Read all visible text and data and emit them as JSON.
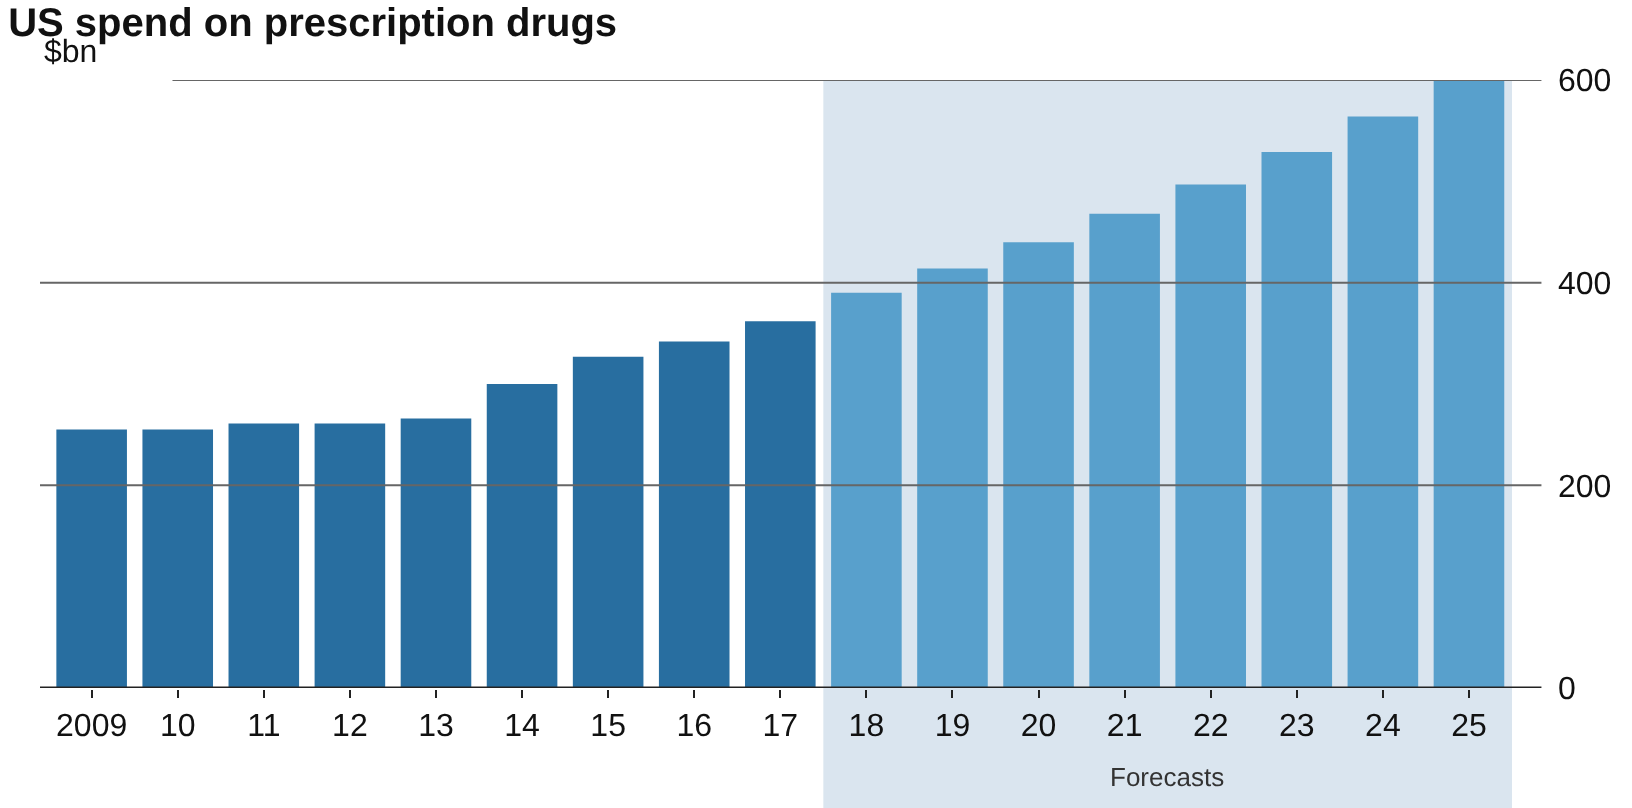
{
  "chart_data": {
    "type": "bar",
    "title": "US spend on prescription drugs",
    "ylabel": "$bn",
    "categories": [
      "2009",
      "10",
      "11",
      "12",
      "13",
      "14",
      "15",
      "16",
      "17",
      "18",
      "19",
      "20",
      "21",
      "22",
      "23",
      "24",
      "25"
    ],
    "values": [
      255,
      255,
      261,
      261,
      266,
      300,
      327,
      342,
      362,
      390,
      414,
      440,
      468,
      497,
      529,
      564,
      600
    ],
    "colors": [
      "#286ea0",
      "#286ea0",
      "#286ea0",
      "#286ea0",
      "#286ea0",
      "#286ea0",
      "#286ea0",
      "#286ea0",
      "#286ea0",
      "#58a0cc",
      "#58a0cc",
      "#58a0cc",
      "#58a0cc",
      "#58a0cc",
      "#58a0cc",
      "#58a0cc",
      "#58a0cc"
    ],
    "bands": [
      {
        "axis": "x",
        "from": "18",
        "to": "25",
        "label": "Forecasts",
        "color": "#dae5ef"
      }
    ],
    "ylim": [
      0,
      600
    ],
    "yticks": [
      0,
      200,
      400,
      600
    ],
    "grid": "y"
  }
}
